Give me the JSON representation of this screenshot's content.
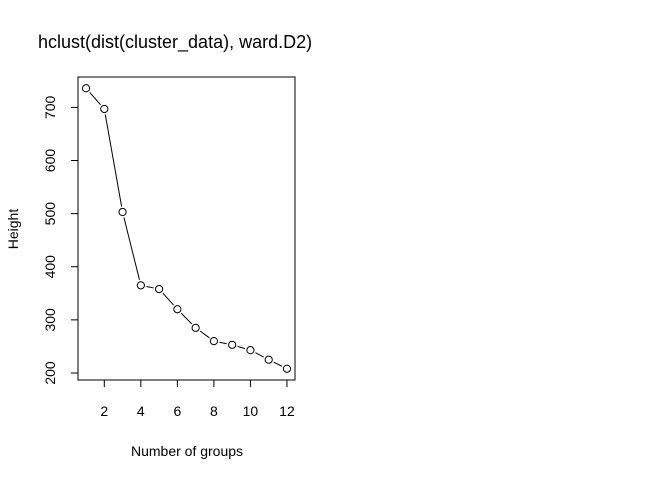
{
  "chart_data": {
    "type": "scatter",
    "title": "hclust(dist(cluster_data), ward.D2)",
    "xlabel": "Number of groups",
    "ylabel": "Height",
    "x": [
      1,
      2,
      3,
      4,
      5,
      6,
      7,
      8,
      9,
      10,
      11,
      12
    ],
    "y": [
      736,
      697,
      503,
      365,
      358,
      320,
      285,
      260,
      253,
      243,
      225,
      208
    ],
    "xlim": [
      0.56,
      12.44
    ],
    "ylim": [
      186.8,
      757.2
    ],
    "xticks": [
      2,
      4,
      6,
      8,
      10,
      12
    ],
    "yticks": [
      200,
      300,
      400,
      500,
      600,
      700
    ],
    "grid": false,
    "legend": "none",
    "marker": "open-circle",
    "line_style": "points-and-lines-with-gaps",
    "colors": {
      "ink": "#000000",
      "background": "#ffffff"
    }
  }
}
